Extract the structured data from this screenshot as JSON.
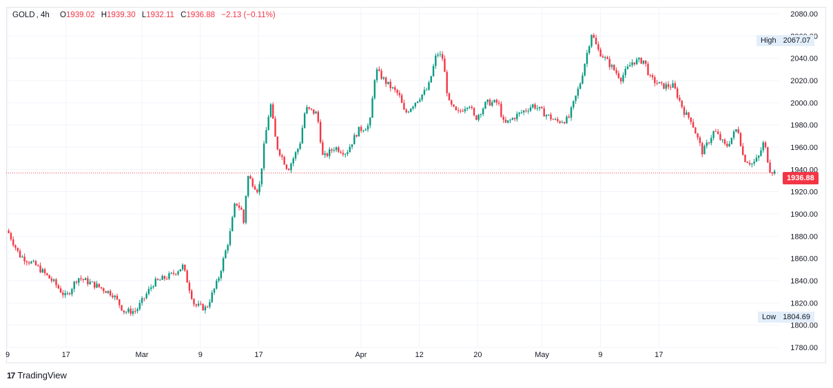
{
  "legend": {
    "symbol": "GOLD",
    "timeframe": "4h",
    "open_label": "O",
    "open": "1939.02",
    "high_label": "H",
    "high": "1939.30",
    "low_label": "L",
    "low": "1932.11",
    "close_label": "C",
    "close": "1936.88",
    "change": "−2.13 (−0.11%)"
  },
  "high_badge": {
    "label": "High",
    "value": "2067.07"
  },
  "low_badge": {
    "label": "Low",
    "value": "1804.69"
  },
  "last_price": "1936.88",
  "brand": {
    "logo": "17",
    "name": "TradingView"
  },
  "colors": {
    "up": "#089981",
    "down": "#f23645",
    "grid": "#f0f3fa",
    "axis_text": "#131722"
  },
  "chart_data": {
    "type": "candlestick",
    "ylim": [
      1780,
      2080
    ],
    "y_ticks": [
      "2080.00",
      "2060.00",
      "2040.00",
      "2020.00",
      "2000.00",
      "1980.00",
      "1960.00",
      "1940.00",
      "1920.00",
      "1900.00",
      "1880.00",
      "1860.00",
      "1840.00",
      "1820.00",
      "1800.00",
      "1780.00"
    ],
    "x_ticks": [
      "9",
      "17",
      "Mar",
      "9",
      "17",
      "Apr",
      "12",
      "20",
      "May",
      "9",
      "17"
    ],
    "x_tick_pos": [
      0,
      1.0,
      2.3,
      3.3,
      4.3,
      6.05,
      7.05,
      8.05,
      9.15,
      10.15,
      11.15
    ],
    "series": [
      {
        "x": 0.0,
        "y": 1885
      },
      {
        "x": 0.2,
        "y": 1863
      },
      {
        "x": 0.5,
        "y": 1853
      },
      {
        "x": 0.8,
        "y": 1838
      },
      {
        "x": 1.0,
        "y": 1825
      },
      {
        "x": 1.2,
        "y": 1843
      },
      {
        "x": 1.5,
        "y": 1836
      },
      {
        "x": 1.8,
        "y": 1828
      },
      {
        "x": 2.0,
        "y": 1812
      },
      {
        "x": 2.2,
        "y": 1813
      },
      {
        "x": 2.5,
        "y": 1838
      },
      {
        "x": 2.8,
        "y": 1845
      },
      {
        "x": 3.0,
        "y": 1853
      },
      {
        "x": 3.2,
        "y": 1818
      },
      {
        "x": 3.4,
        "y": 1815
      },
      {
        "x": 3.6,
        "y": 1840
      },
      {
        "x": 3.8,
        "y": 1880
      },
      {
        "x": 3.9,
        "y": 1911
      },
      {
        "x": 4.0,
        "y": 1904
      },
      {
        "x": 4.05,
        "y": 1890
      },
      {
        "x": 4.1,
        "y": 1935
      },
      {
        "x": 4.3,
        "y": 1920
      },
      {
        "x": 4.4,
        "y": 1965
      },
      {
        "x": 4.5,
        "y": 2000
      },
      {
        "x": 4.6,
        "y": 1962
      },
      {
        "x": 4.8,
        "y": 1940
      },
      {
        "x": 5.0,
        "y": 1962
      },
      {
        "x": 5.1,
        "y": 1995
      },
      {
        "x": 5.3,
        "y": 1990
      },
      {
        "x": 5.4,
        "y": 1950
      },
      {
        "x": 5.6,
        "y": 1960
      },
      {
        "x": 5.8,
        "y": 1955
      },
      {
        "x": 6.0,
        "y": 1975
      },
      {
        "x": 6.2,
        "y": 1980
      },
      {
        "x": 6.3,
        "y": 2030
      },
      {
        "x": 6.5,
        "y": 2017
      },
      {
        "x": 6.7,
        "y": 2007
      },
      {
        "x": 6.8,
        "y": 1990
      },
      {
        "x": 7.0,
        "y": 2002
      },
      {
        "x": 7.2,
        "y": 2013
      },
      {
        "x": 7.35,
        "y": 2045
      },
      {
        "x": 7.45,
        "y": 2040
      },
      {
        "x": 7.55,
        "y": 2000
      },
      {
        "x": 7.7,
        "y": 1990
      },
      {
        "x": 7.9,
        "y": 2000
      },
      {
        "x": 8.0,
        "y": 1985
      },
      {
        "x": 8.2,
        "y": 2000
      },
      {
        "x": 8.4,
        "y": 2000
      },
      {
        "x": 8.5,
        "y": 1980
      },
      {
        "x": 8.7,
        "y": 1988
      },
      {
        "x": 9.0,
        "y": 1998
      },
      {
        "x": 9.2,
        "y": 1990
      },
      {
        "x": 9.4,
        "y": 1983
      },
      {
        "x": 9.6,
        "y": 1985
      },
      {
        "x": 9.8,
        "y": 2017
      },
      {
        "x": 9.9,
        "y": 2040
      },
      {
        "x": 10.0,
        "y": 2063
      },
      {
        "x": 10.1,
        "y": 2048
      },
      {
        "x": 10.3,
        "y": 2035
      },
      {
        "x": 10.5,
        "y": 2022
      },
      {
        "x": 10.7,
        "y": 2037
      },
      {
        "x": 10.9,
        "y": 2038
      },
      {
        "x": 11.0,
        "y": 2022
      },
      {
        "x": 11.2,
        "y": 2015
      },
      {
        "x": 11.4,
        "y": 2015
      },
      {
        "x": 11.6,
        "y": 1990
      },
      {
        "x": 11.7,
        "y": 1985
      },
      {
        "x": 11.9,
        "y": 1955
      },
      {
        "x": 12.1,
        "y": 1975
      },
      {
        "x": 12.3,
        "y": 1960
      },
      {
        "x": 12.5,
        "y": 1978
      },
      {
        "x": 12.6,
        "y": 1950
      },
      {
        "x": 12.75,
        "y": 1945
      },
      {
        "x": 12.85,
        "y": 1950
      },
      {
        "x": 12.95,
        "y": 1965
      },
      {
        "x": 13.05,
        "y": 1940
      },
      {
        "x": 13.15,
        "y": 1937
      }
    ]
  }
}
